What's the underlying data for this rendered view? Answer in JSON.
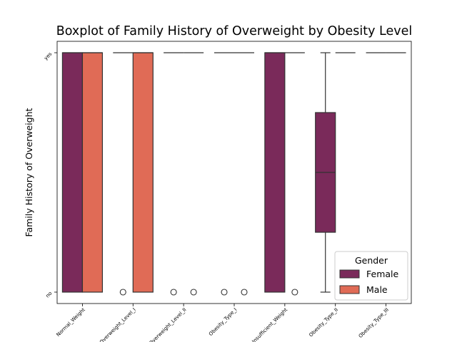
{
  "chart_data": {
    "type": "boxplot",
    "title": "Boxplot of Family History of Overweight by Obesity Level",
    "xlabel": "",
    "ylabel": "Family History of Overweight",
    "y_categories": [
      "no",
      "yes"
    ],
    "categories": [
      "Normal_Weight",
      "Overweight_Level_I",
      "Overweight_Level_II",
      "Obesity_Type_I",
      "Insufficient_Weight",
      "Obesity_Type_II",
      "Obesity_Type_III"
    ],
    "legend": {
      "title": "Gender",
      "placement": "lower right"
    },
    "series": [
      {
        "name": "Female",
        "color": "#7a2a5a",
        "boxes": [
          {
            "q1": 0,
            "median": 1,
            "q3": 1,
            "whislo": 0,
            "whishi": 1,
            "outliers": []
          },
          {
            "q1": 1,
            "median": 1,
            "q3": 1,
            "whislo": 1,
            "whishi": 1,
            "outliers": [
              0
            ]
          },
          {
            "q1": 1,
            "median": 1,
            "q3": 1,
            "whislo": 1,
            "whishi": 1,
            "outliers": [
              0
            ]
          },
          {
            "q1": 1,
            "median": 1,
            "q3": 1,
            "whislo": 1,
            "whishi": 1,
            "outliers": [
              0
            ]
          },
          {
            "q1": 0,
            "median": 1,
            "q3": 1,
            "whislo": 0,
            "whishi": 1,
            "outliers": []
          },
          {
            "q1": 0.25,
            "median": 0.5,
            "q3": 0.75,
            "whislo": 0,
            "whishi": 1,
            "outliers": []
          },
          {
            "q1": 1,
            "median": 1,
            "q3": 1,
            "whislo": 1,
            "whishi": 1,
            "outliers": []
          }
        ]
      },
      {
        "name": "Male",
        "color": "#e06b56",
        "boxes": [
          {
            "q1": 0,
            "median": 1,
            "q3": 1,
            "whislo": 0,
            "whishi": 1,
            "outliers": []
          },
          {
            "q1": 0,
            "median": 1,
            "q3": 1,
            "whislo": 0,
            "whishi": 1,
            "outliers": []
          },
          {
            "q1": 1,
            "median": 1,
            "q3": 1,
            "whislo": 1,
            "whishi": 1,
            "outliers": [
              0
            ]
          },
          {
            "q1": 1,
            "median": 1,
            "q3": 1,
            "whislo": 1,
            "whishi": 1,
            "outliers": [
              0
            ]
          },
          {
            "q1": 1,
            "median": 1,
            "q3": 1,
            "whislo": 1,
            "whishi": 1,
            "outliers": [
              0
            ]
          },
          {
            "q1": 1,
            "median": 1,
            "q3": 1,
            "whislo": 1,
            "whishi": 1,
            "outliers": []
          },
          {
            "q1": 1,
            "median": 1,
            "q3": 1,
            "whislo": 1,
            "whishi": 1,
            "outliers": []
          }
        ]
      }
    ]
  }
}
